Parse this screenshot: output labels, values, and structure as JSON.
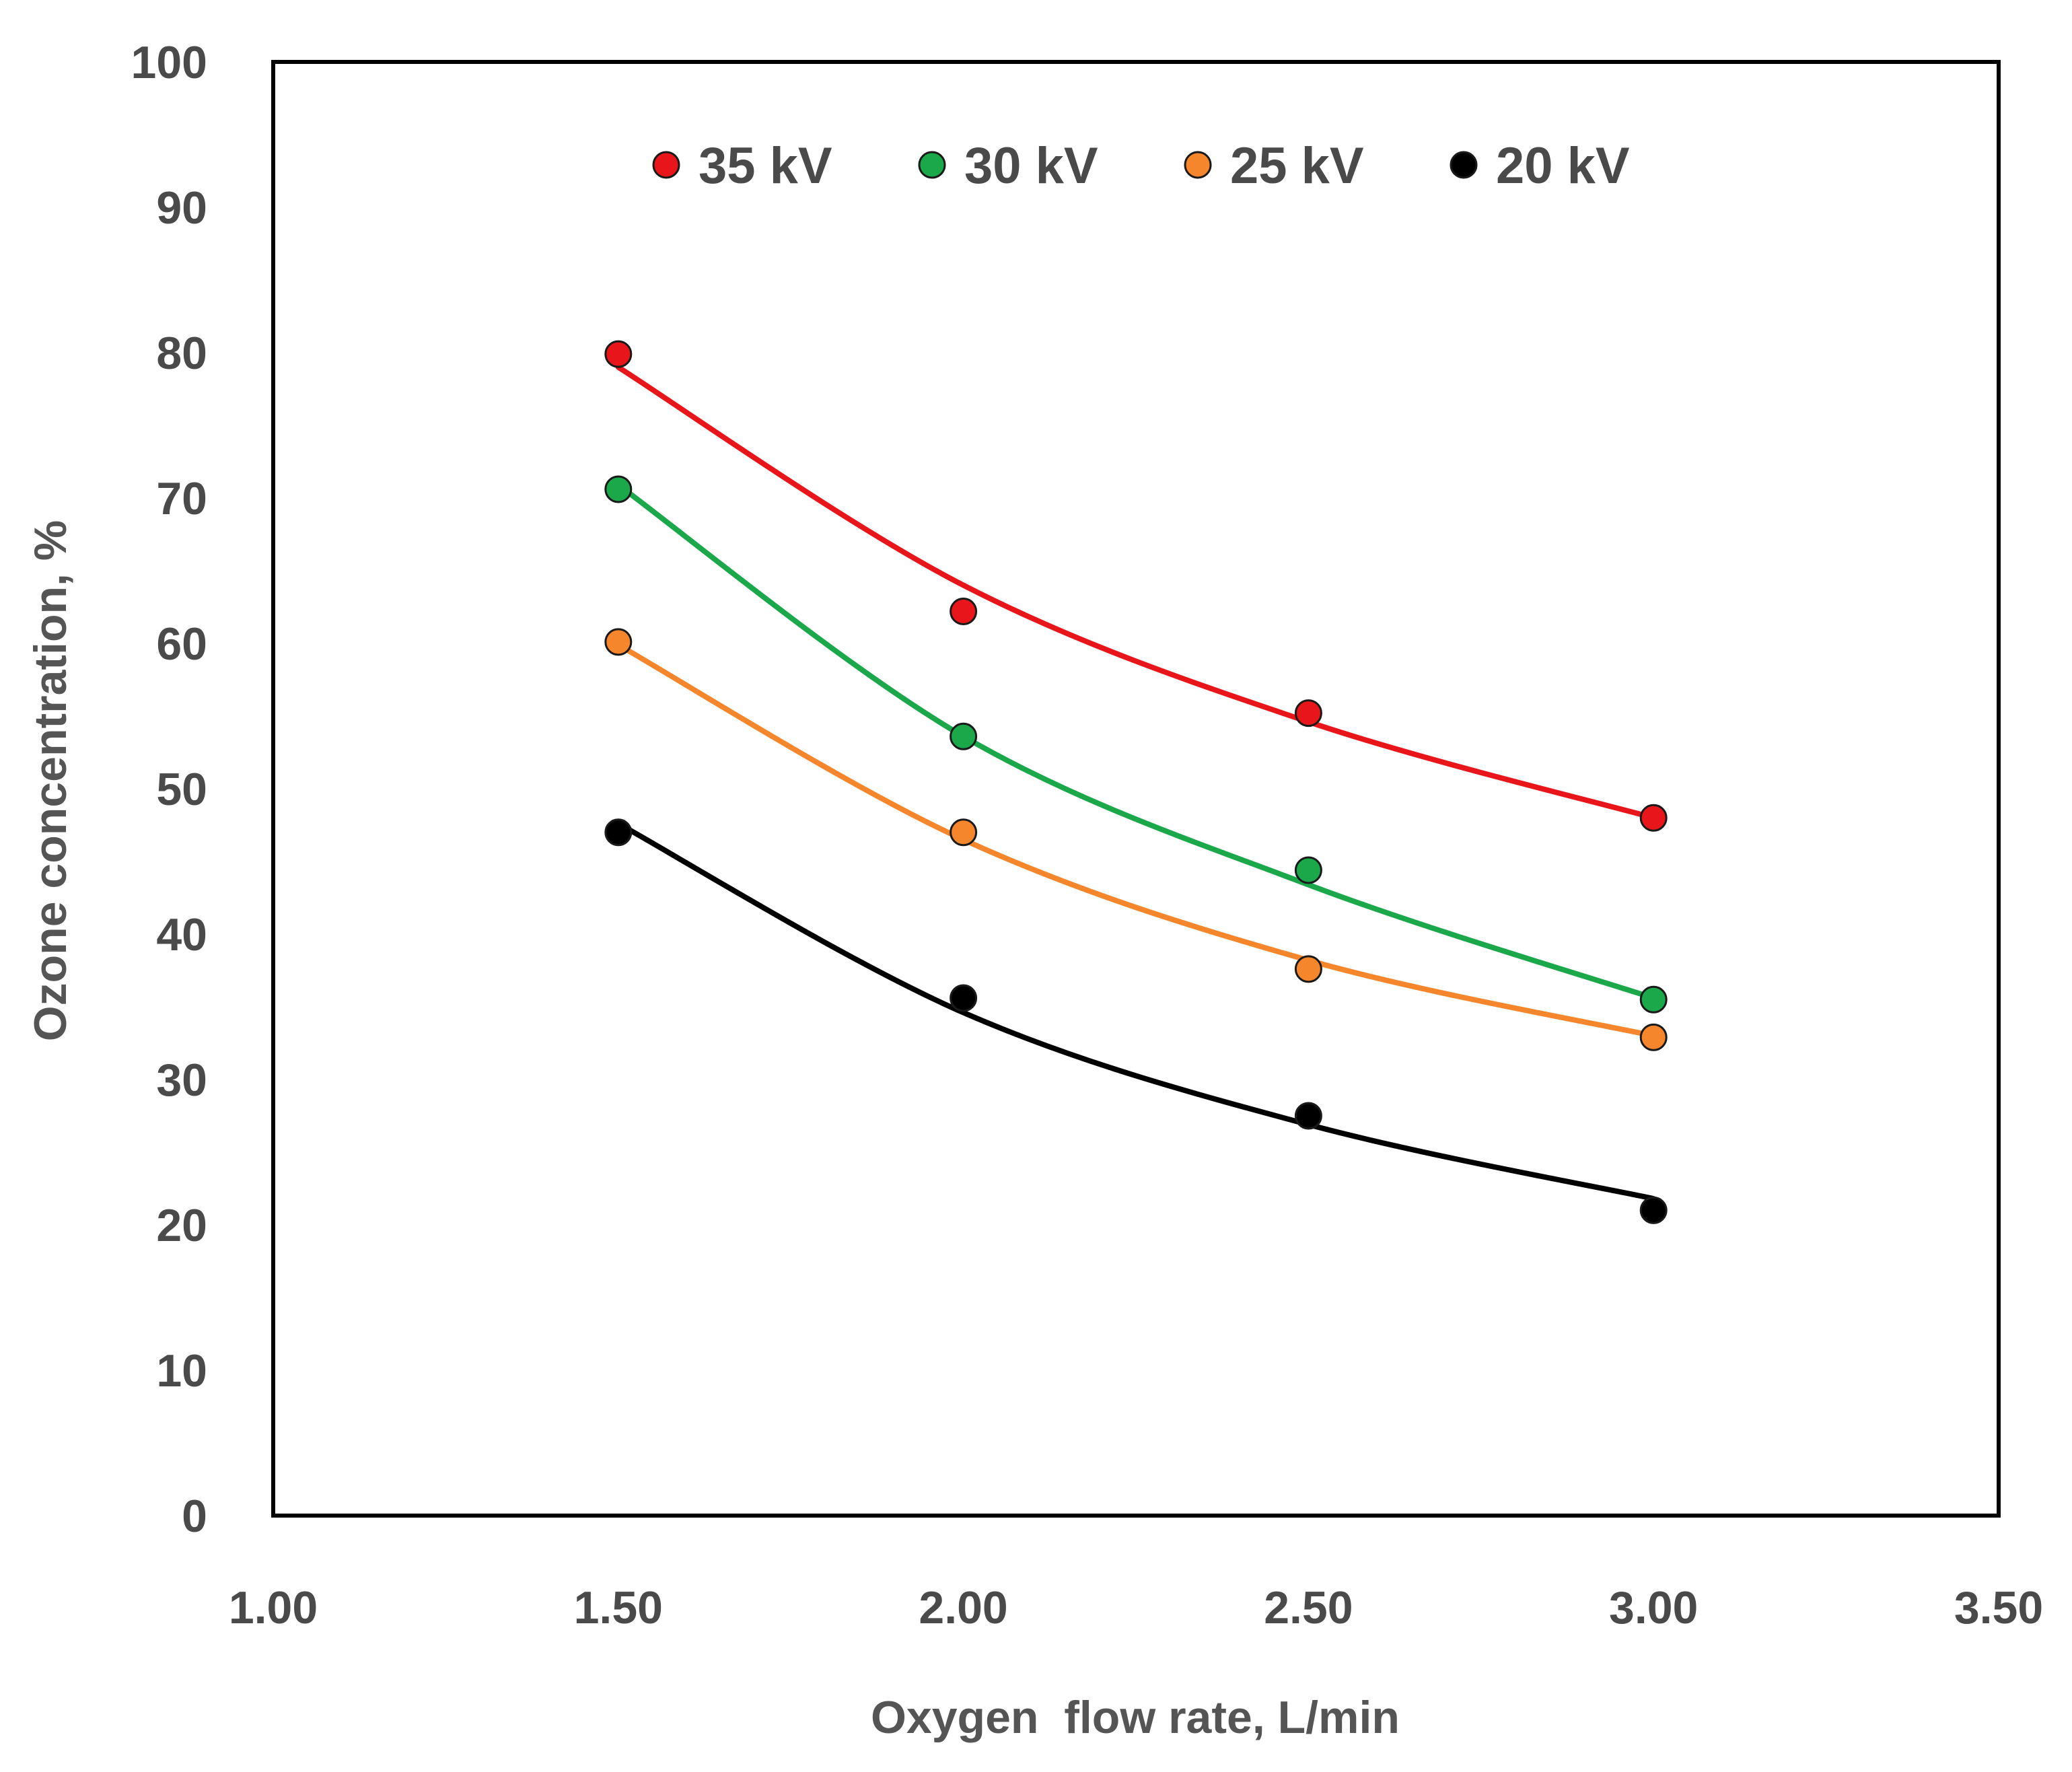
{
  "chart_data": {
    "type": "scatter",
    "xlabel": "Oxygen  flow rate, L/min",
    "ylabel": "Ozone concentration, %",
    "xlim": [
      1.0,
      3.5
    ],
    "ylim": [
      0,
      100
    ],
    "x_ticks": [
      "1.00",
      "1.50",
      "2.00",
      "2.50",
      "3.00",
      "3.50"
    ],
    "y_ticks": [
      "0",
      "10",
      "20",
      "30",
      "40",
      "50",
      "60",
      "70",
      "80",
      "90",
      "100"
    ],
    "legend_position": "top-center",
    "grid": false,
    "series": [
      {
        "name": "35 kV",
        "color": "#e8161b",
        "x": [
          1.5,
          2.0,
          2.5,
          3.0
        ],
        "y": [
          79.9,
          62.2,
          55.2,
          48.0
        ],
        "fit": [
          79.0,
          64.0,
          54.6,
          48.0
        ]
      },
      {
        "name": "30 kV",
        "color": "#1aa84a",
        "x": [
          1.5,
          2.0,
          2.5,
          3.0
        ],
        "y": [
          70.6,
          53.6,
          44.4,
          35.5
        ],
        "fit": [
          70.9,
          53.6,
          43.4,
          35.6
        ]
      },
      {
        "name": "25 kV",
        "color": "#f5862b",
        "x": [
          1.5,
          2.0,
          2.5,
          3.0
        ],
        "y": [
          60.1,
          47.0,
          37.6,
          32.9
        ],
        "fit": [
          59.9,
          46.5,
          38.2,
          33.0
        ]
      },
      {
        "name": "20 kV",
        "color": "#000000",
        "x": [
          1.5,
          2.0,
          2.5,
          3.0
        ],
        "y": [
          47.0,
          35.6,
          27.5,
          21.0
        ],
        "fit": [
          47.6,
          34.6,
          26.9,
          21.8
        ]
      }
    ]
  }
}
